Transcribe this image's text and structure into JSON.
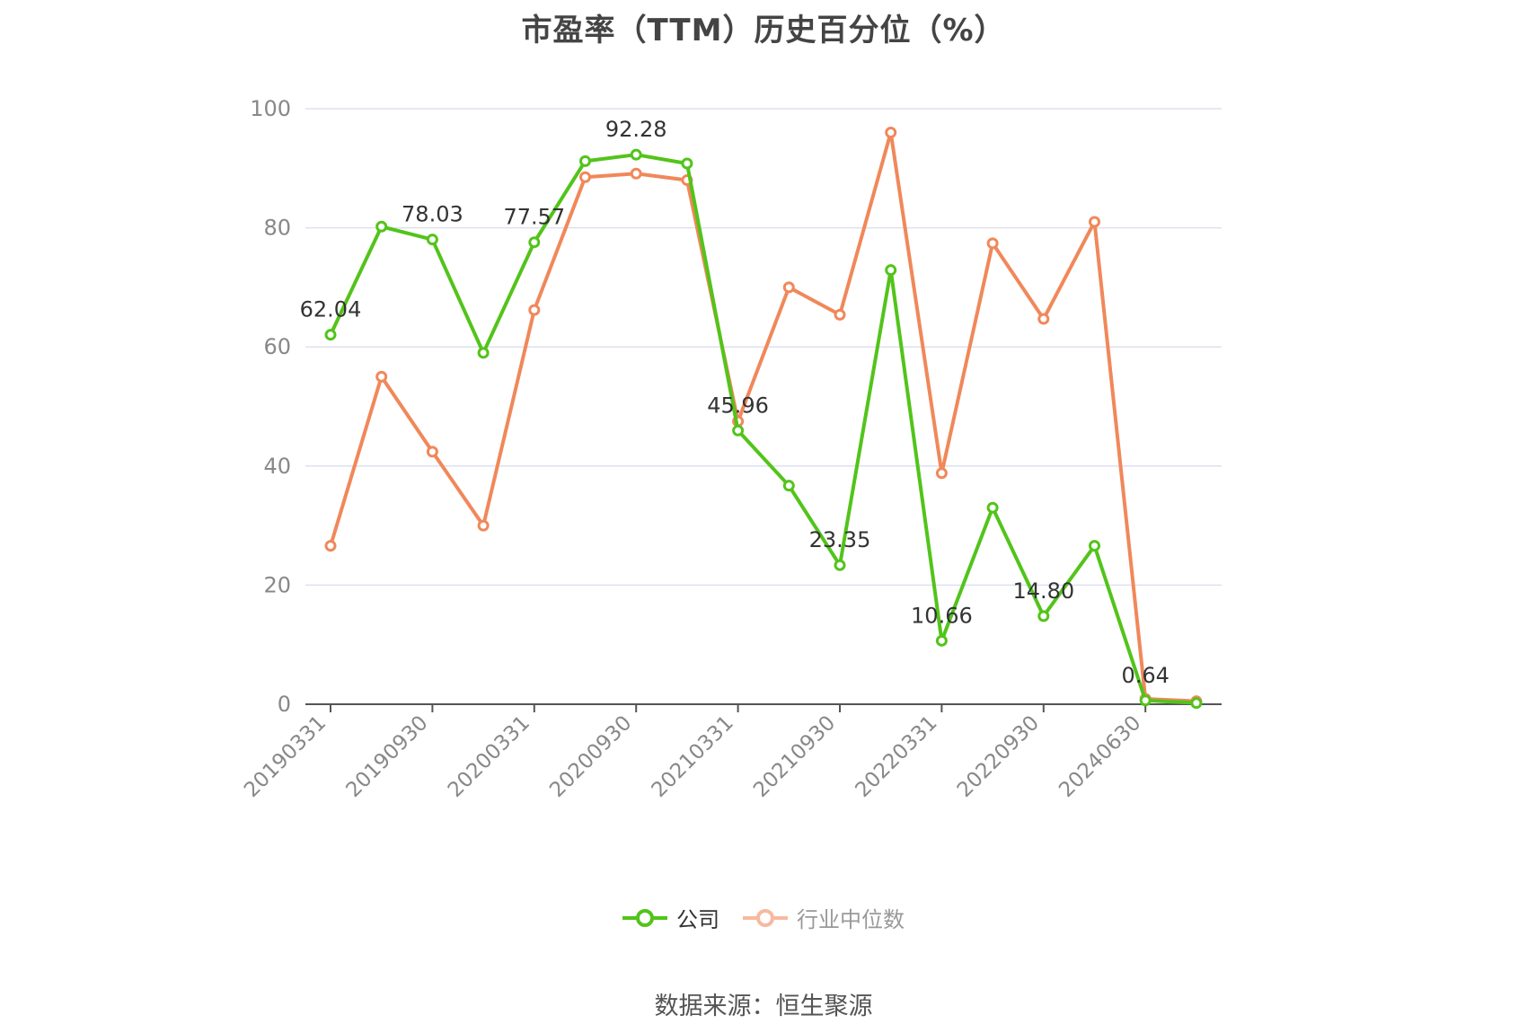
{
  "chart_data": {
    "type": "line",
    "title": "市盈率（TTM）历史百分位（%）",
    "x": [
      "20190331",
      "20190630",
      "20190930",
      "20191231",
      "20200331",
      "20200630",
      "20200930",
      "20201231",
      "20210331",
      "20210630",
      "20210930",
      "20211231",
      "20220331",
      "20220630",
      "20220930",
      "20221231",
      "20240630",
      "20240930"
    ],
    "x_tick_labels": [
      "20190331",
      "20190930",
      "20200331",
      "20200930",
      "20210331",
      "20210930",
      "20220331",
      "20220930",
      "20240630"
    ],
    "ylim": [
      0,
      100
    ],
    "y_ticks": [
      0,
      20,
      40,
      60,
      80,
      100
    ],
    "grid": true,
    "legend_position": "bottom",
    "series": [
      {
        "name": "公司",
        "color": "#52c41a",
        "values": [
          62.04,
          80.2,
          78.03,
          59,
          77.57,
          91.2,
          92.28,
          90.8,
          45.96,
          36.7,
          23.35,
          72.9,
          10.66,
          33.0,
          14.8,
          26.6,
          0.64,
          0.2
        ],
        "data_labels": [
          "62.04",
          null,
          "78.03",
          null,
          "77.57",
          null,
          "92.28",
          null,
          "45.96",
          null,
          "23.35",
          null,
          "10.66",
          null,
          "14.80",
          null,
          "0.64",
          null
        ]
      },
      {
        "name": "行业中位数",
        "color": "#f0885a",
        "values": [
          26.6,
          55.0,
          42.4,
          30.0,
          66.2,
          88.5,
          89.1,
          88.0,
          47.5,
          70.0,
          65.4,
          96.0,
          38.8,
          77.4,
          64.7,
          81.0,
          0.9,
          0.5
        ]
      }
    ],
    "source": "数据来源：恒生聚源"
  }
}
